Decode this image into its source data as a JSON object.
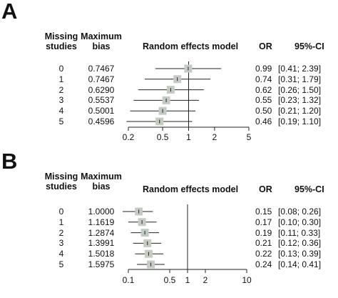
{
  "chart_data": [
    {
      "type": "forest",
      "panel_label": "A",
      "headers": {
        "missing": "Missing studies",
        "bias": "Maximum bias",
        "plot": "Random effects model",
        "or": "OR",
        "ci": "95%-CI"
      },
      "x_scale": "log",
      "xlim": [
        0.2,
        5
      ],
      "x_ticks": [
        0.2,
        0.5,
        1,
        2,
        5
      ],
      "x_tick_labels": [
        "0.2",
        "0.5",
        "1",
        "2",
        "5"
      ],
      "reference_line": 1,
      "rows": [
        {
          "missing": "0",
          "bias": "0.7467",
          "or": 0.99,
          "lo": 0.41,
          "hi": 2.39,
          "or_text": "0.99",
          "ci_text": "[0.41; 2.39]"
        },
        {
          "missing": "1",
          "bias": "0.7467",
          "or": 0.74,
          "lo": 0.31,
          "hi": 1.79,
          "or_text": "0.74",
          "ci_text": "[0.31; 1.79]"
        },
        {
          "missing": "2",
          "bias": "0.6290",
          "or": 0.62,
          "lo": 0.26,
          "hi": 1.5,
          "or_text": "0.62",
          "ci_text": "[0.26; 1.50]"
        },
        {
          "missing": "3",
          "bias": "0.5537",
          "or": 0.55,
          "lo": 0.23,
          "hi": 1.32,
          "or_text": "0.55",
          "ci_text": "[0.23; 1.32]"
        },
        {
          "missing": "4",
          "bias": "0.5001",
          "or": 0.5,
          "lo": 0.21,
          "hi": 1.2,
          "or_text": "0.50",
          "ci_text": "[0.21; 1.20]"
        },
        {
          "missing": "5",
          "bias": "0.4596",
          "or": 0.46,
          "lo": 0.19,
          "hi": 1.1,
          "or_text": "0.46",
          "ci_text": "[0.19; 1.10]"
        }
      ]
    },
    {
      "type": "forest",
      "panel_label": "B",
      "headers": {
        "missing": "Missing studies",
        "bias": "Maximum bias",
        "plot": "Random effects model",
        "or": "OR",
        "ci": "95%-CI"
      },
      "x_scale": "log",
      "xlim": [
        0.1,
        10
      ],
      "x_ticks": [
        0.1,
        0.5,
        1,
        2,
        10
      ],
      "x_tick_labels": [
        "0.1",
        "0.5",
        "1",
        "2",
        "10"
      ],
      "reference_line": 1,
      "rows": [
        {
          "missing": "0",
          "bias": "1.0000",
          "or": 0.15,
          "lo": 0.08,
          "hi": 0.26,
          "or_text": "0.15",
          "ci_text": "[0.08; 0.26]"
        },
        {
          "missing": "1",
          "bias": "1.1619",
          "or": 0.17,
          "lo": 0.1,
          "hi": 0.3,
          "or_text": "0.17",
          "ci_text": "[0.10; 0.30]"
        },
        {
          "missing": "2",
          "bias": "1.2874",
          "or": 0.19,
          "lo": 0.11,
          "hi": 0.33,
          "or_text": "0.19",
          "ci_text": "[0.11; 0.33]"
        },
        {
          "missing": "3",
          "bias": "1.3991",
          "or": 0.21,
          "lo": 0.12,
          "hi": 0.36,
          "or_text": "0.21",
          "ci_text": "[0.12; 0.36]"
        },
        {
          "missing": "4",
          "bias": "1.5018",
          "or": 0.22,
          "lo": 0.13,
          "hi": 0.39,
          "or_text": "0.22",
          "ci_text": "[0.13; 0.39]"
        },
        {
          "missing": "5",
          "bias": "1.5975",
          "or": 0.24,
          "lo": 0.14,
          "hi": 0.41,
          "or_text": "0.24",
          "ci_text": "[0.14; 0.41]"
        }
      ]
    }
  ],
  "colors": {
    "box": "#c4cbc4",
    "line": "#222222",
    "text": "#111111"
  }
}
